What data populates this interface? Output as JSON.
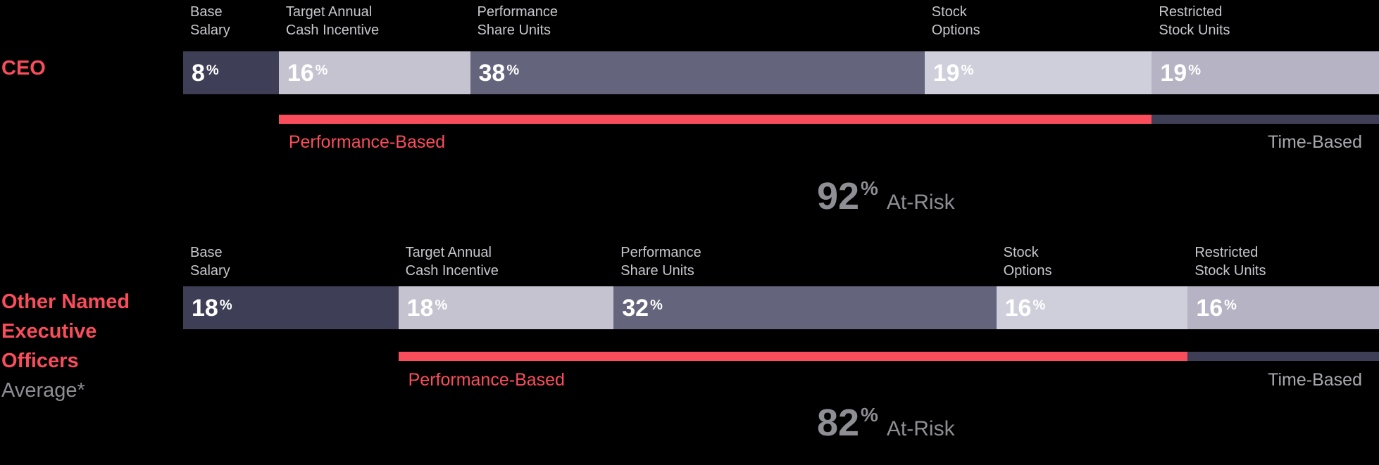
{
  "chart_data": {
    "type": "bar",
    "orientation": "horizontal-stacked",
    "unit": "%",
    "colors": {
      "background": "#000000",
      "base_salary": "#3e3e57",
      "cash_incentive": "#c5c3d0",
      "performance_share_units": "#64647d",
      "stock_options": "#cfcedb",
      "restricted_stock_units": "#b6b4c4",
      "performance_red": "#fa4d5c",
      "time_based_bar": "#3e3e57",
      "segment_value_text": "#ffffff",
      "segment_label_text": "#c6c6cd",
      "time_based_text": "#a8a8b0",
      "at_risk_text": "#8e8e95"
    },
    "rows": [
      {
        "id": "ceo",
        "row_label_lines": [
          "CEO"
        ],
        "row_sublabel": "",
        "segments": [
          {
            "name": "Base Salary",
            "label_lines": [
              "Base",
              "Salary"
            ],
            "value": 8,
            "color_key": "base_salary"
          },
          {
            "name": "Target Annual Cash Incentive",
            "label_lines": [
              "Target Annual",
              "Cash Incentive"
            ],
            "value": 16,
            "color_key": "cash_incentive"
          },
          {
            "name": "Performance Share Units",
            "label_lines": [
              "Performance",
              "Share Units"
            ],
            "value": 38,
            "color_key": "performance_share_units"
          },
          {
            "name": "Stock Options",
            "label_lines": [
              "Stock",
              "Options"
            ],
            "value": 19,
            "color_key": "stock_options"
          },
          {
            "name": "Restricted Stock Units",
            "label_lines": [
              "Restricted",
              "Stock Units"
            ],
            "value": 19,
            "color_key": "restricted_stock_units"
          }
        ],
        "performance_based": {
          "label": "Performance-Based",
          "from_segment": 1,
          "to_segment": 3
        },
        "time_based": {
          "label": "Time-Based",
          "from_segment": 4,
          "to_segment": 4
        },
        "at_risk": {
          "value": 92,
          "label": "At-Risk"
        }
      },
      {
        "id": "neo",
        "row_label_lines": [
          "Other Named",
          "Executive",
          "Officers"
        ],
        "row_sublabel": "Average*",
        "segments": [
          {
            "name": "Base Salary",
            "label_lines": [
              "Base",
              "Salary"
            ],
            "value": 18,
            "color_key": "base_salary"
          },
          {
            "name": "Target Annual Cash Incentive",
            "label_lines": [
              "Target Annual",
              "Cash Incentive"
            ],
            "value": 18,
            "color_key": "cash_incentive"
          },
          {
            "name": "Performance Share Units",
            "label_lines": [
              "Performance",
              "Share Units"
            ],
            "value": 32,
            "color_key": "performance_share_units"
          },
          {
            "name": "Stock Options",
            "label_lines": [
              "Stock",
              "Options"
            ],
            "value": 16,
            "color_key": "stock_options"
          },
          {
            "name": "Restricted Stock Units",
            "label_lines": [
              "Restricted",
              "Stock Units"
            ],
            "value": 16,
            "color_key": "restricted_stock_units"
          }
        ],
        "performance_based": {
          "label": "Performance-Based",
          "from_segment": 1,
          "to_segment": 3
        },
        "time_based": {
          "label": "Time-Based",
          "from_segment": 4,
          "to_segment": 4
        },
        "at_risk": {
          "value": 82,
          "label": "At-Risk"
        }
      }
    ]
  }
}
